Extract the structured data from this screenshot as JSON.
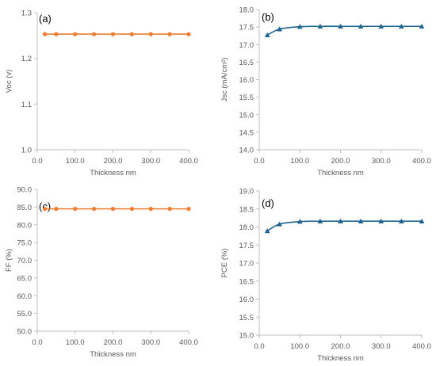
{
  "chart_data": [
    {
      "type": "line",
      "panel_label": "(a)",
      "xlabel": "Thickness nm",
      "ylabel": "Voc (v)",
      "x": [
        20,
        50,
        100,
        150,
        200,
        250,
        300,
        350,
        400
      ],
      "xlim": [
        0,
        400
      ],
      "xticks": [
        0,
        100,
        200,
        300,
        400
      ],
      "xtick_labels": [
        "0.0",
        "100.0",
        "200.0",
        "300.0",
        "400.0"
      ],
      "ylim": [
        1.0,
        1.3
      ],
      "yticks": [
        1.0,
        1.1,
        1.2,
        1.3
      ],
      "ytick_labels": [
        "1.0",
        "1.1",
        "1.2",
        "1.3"
      ],
      "series": [
        {
          "values": [
            1.253,
            1.253,
            1.253,
            1.253,
            1.253,
            1.253,
            1.253,
            1.253,
            1.253
          ],
          "color": "#ed7d31",
          "marker": "circle"
        }
      ],
      "grid": false,
      "legend": "none"
    },
    {
      "type": "line",
      "panel_label": "(b)",
      "xlabel": "Thickness nm",
      "ylabel": "Jsc (mA/cm²)",
      "x": [
        20,
        50,
        100,
        150,
        200,
        250,
        300,
        350,
        400
      ],
      "xlim": [
        0,
        400
      ],
      "xticks": [
        0,
        100,
        200,
        300,
        400
      ],
      "xtick_labels": [
        "0.0",
        "100.0",
        "200.0",
        "300.0",
        "400.0"
      ],
      "ylim": [
        14.0,
        18.0
      ],
      "yticks": [
        14.0,
        14.5,
        15.0,
        15.5,
        16.0,
        16.5,
        17.0,
        17.5,
        18.0
      ],
      "ytick_labels": [
        "14.0",
        "14.5",
        "15.0",
        "15.5",
        "16.0",
        "16.5",
        "17.0",
        "17.5",
        "18.0"
      ],
      "series": [
        {
          "values": [
            17.27,
            17.44,
            17.51,
            17.52,
            17.52,
            17.52,
            17.52,
            17.52,
            17.52
          ],
          "color": "#1f6391",
          "marker": "triangle"
        }
      ],
      "grid": false,
      "legend": "none"
    },
    {
      "type": "line",
      "panel_label": "(c)",
      "xlabel": "Thickness nm",
      "ylabel": "FF (%)",
      "x": [
        20,
        50,
        100,
        150,
        200,
        250,
        300,
        350,
        400
      ],
      "xlim": [
        0,
        400
      ],
      "xticks": [
        0,
        100,
        200,
        300,
        400
      ],
      "xtick_labels": [
        "0.0",
        "100.0",
        "200.0",
        "300.0",
        "400.0"
      ],
      "ylim": [
        50.0,
        90.0
      ],
      "yticks": [
        50,
        55,
        60,
        65,
        70,
        75,
        80,
        85,
        90
      ],
      "ytick_labels": [
        "50.0",
        "55.0",
        "60.0",
        "65.0",
        "70.0",
        "75.0",
        "80.0",
        "85.0",
        "90.0"
      ],
      "series": [
        {
          "values": [
            84.5,
            84.5,
            84.5,
            84.5,
            84.5,
            84.5,
            84.5,
            84.5,
            84.5
          ],
          "color": "#ed7d31",
          "marker": "circle"
        }
      ],
      "grid": false,
      "legend": "none"
    },
    {
      "type": "line",
      "panel_label": "(d)",
      "xlabel": "Thickness nm",
      "ylabel": "PCE (%)",
      "x": [
        20,
        50,
        100,
        150,
        200,
        250,
        300,
        350,
        400
      ],
      "xlim": [
        0,
        400
      ],
      "xticks": [
        0,
        100,
        200,
        300,
        400
      ],
      "xtick_labels": [
        "0.0",
        "100.0",
        "200.0",
        "300.0",
        "400.0"
      ],
      "ylim": [
        15.0,
        19.0
      ],
      "yticks": [
        15.0,
        15.5,
        16.0,
        16.5,
        17.0,
        17.5,
        18.0,
        18.5,
        19.0
      ],
      "ytick_labels": [
        "15.0",
        "15.5",
        "16.0",
        "16.5",
        "17.0",
        "17.5",
        "18.0",
        "18.5",
        "19.0"
      ],
      "series": [
        {
          "values": [
            17.89,
            18.08,
            18.15,
            18.16,
            18.16,
            18.16,
            18.16,
            18.16,
            18.16
          ],
          "color": "#1f6391",
          "marker": "triangle"
        }
      ],
      "grid": false,
      "legend": "none"
    }
  ]
}
